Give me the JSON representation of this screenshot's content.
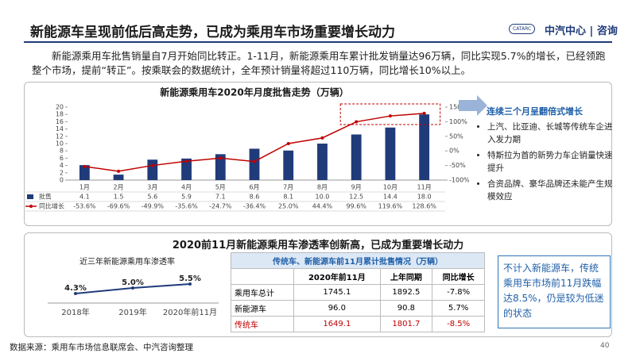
{
  "header": {
    "title": "新能源车呈现前低后高走势，已成为乘用车市场重要增长动力"
  },
  "logo": {
    "badge": "CATARC",
    "brand": "中汽中心",
    "sub": "咨询"
  },
  "intro": "新能源乘用车批售销量自7月开始同比转正。1-11月，新能源乘用车累计批发销量达96万辆，同比实现5.7%的增长，已经领跑整个市场，提前“转正”。按乘联会的数据统计，全年预计销量将超过110万辆，同比增长10%以上。",
  "sidebar": {
    "heading": "连续三个月呈翻倍式增长",
    "bullets": [
      "上汽、比亚迪、长城等传统车企进入发力期",
      "特斯拉为首的新势力车企销量快速提升",
      "合资品牌、豪华品牌还未能产生规模效应"
    ]
  },
  "section2": {
    "title": "2020前11月新能源乘用车渗透率创新高，已成为重要增长动力"
  },
  "table": {
    "title": "传统车、新能源车前11月累计批售情况（万辆）",
    "header": [
      "",
      "2020年前11月",
      "上年同期",
      "同比增长"
    ],
    "rows": [
      [
        "乘用车总计",
        "1745.1",
        "1892.5",
        "-7.8%"
      ],
      [
        "新能源车",
        "96.0",
        "90.8",
        "5.7%"
      ],
      [
        "传统车",
        "1649.1",
        "1801.7",
        "-8.5%"
      ]
    ]
  },
  "note": "不计入新能源车，传统乘用车市场前11月跌幅达8.5%，仍是较为低迷的状态",
  "footer": {
    "source": "数据来源：乘用车市场信息联席会、中汽咨询整理",
    "page": "40"
  },
  "chart_data": [
    {
      "type": "combo",
      "title": "新能源乘用车2020年月度批售走势（万辆）",
      "categories": [
        "1月",
        "2月",
        "3月",
        "4月",
        "5月",
        "6月",
        "7月",
        "8月",
        "9月",
        "10月",
        "11月"
      ],
      "series": [
        {
          "name": "批售",
          "type": "bar",
          "color": "#1f3b7a",
          "values": [
            4.1,
            1.5,
            5.6,
            5.9,
            7.1,
            8.6,
            8.1,
            10.0,
            12.5,
            14.4,
            18.0
          ],
          "value_labels": [
            "4.1",
            "1.5",
            "5.6",
            "5.9",
            "7.1",
            "8.6",
            "8.1",
            "10.0",
            "12.5",
            "14.4",
            "18.0"
          ]
        },
        {
          "name": "同比增长",
          "type": "line",
          "axis": "y2",
          "color": "#c00000",
          "values": [
            -53.6,
            -69.6,
            -49.9,
            -35.6,
            -24.7,
            -36.4,
            25.0,
            44.4,
            99.6,
            119.6,
            128.6
          ],
          "value_labels": [
            "-53.6%",
            "-69.6%",
            "-49.9%",
            "-35.6%",
            "-24.7%",
            "-36.4%",
            "25.0%",
            "44.4%",
            "99.6%",
            "119.6%",
            "128.6%"
          ]
        }
      ],
      "ylim": [
        0,
        20
      ],
      "yticks": [
        0,
        2,
        4,
        6,
        8,
        10,
        12,
        14,
        16,
        18,
        20
      ],
      "y2lim": [
        -100,
        150
      ],
      "y2ticks": [
        {
          "value": -100,
          "label": "-100%"
        },
        {
          "value": -50,
          "label": "-50%"
        },
        {
          "value": 0,
          "label": "0%"
        },
        {
          "value": 50,
          "label": "50%"
        },
        {
          "value": 100,
          "label": "100%"
        },
        {
          "value": 150,
          "label": "150%"
        }
      ]
    },
    {
      "type": "line",
      "title": "近三年新能源乘用车渗透率",
      "categories": [
        "2018年",
        "2019年",
        "2020年前11月"
      ],
      "color": "#1f3b7a",
      "values": [
        4.3,
        5.0,
        5.5
      ],
      "value_labels": [
        "4.3%",
        "5.0%",
        "5.5%"
      ]
    }
  ]
}
